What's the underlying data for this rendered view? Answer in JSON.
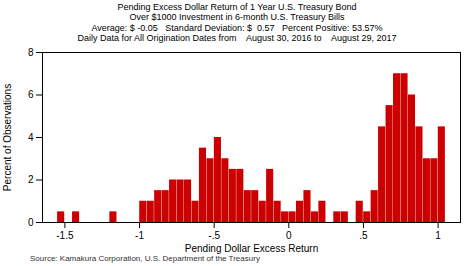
{
  "chart_data": {
    "type": "bar",
    "title": "Pending Excess Dollar Return of 1 Year U.S. Treasury Bond\nOver $1000 Investment in 6-month U.S. Treasury Bills\nAverage: $ -0.05   Standard Deviation: $  0.57   Percent Positive: 53.57%\nDaily Data for All Origination Dates from    August 30, 2016 to    August 29, 2017",
    "xlabel": "Pending Dollar Excess Return",
    "ylabel": "Percent of Observations",
    "caption": "Source: Kamakura Corporation, U.S. Department of the Treasury",
    "color": "#cc0000",
    "xlim": [
      -1.65,
      1.15
    ],
    "ylim": [
      0,
      8
    ],
    "xticks": [
      -1.5,
      -1,
      {
        "value": -0.5,
        "label": "-.5"
      },
      0,
      {
        "value": 0.5,
        "label": ".5"
      },
      1
    ],
    "yticks": [
      0,
      2,
      4,
      6,
      8
    ],
    "grid": false,
    "x": [
      -1.525,
      -1.475,
      -1.425,
      -1.375,
      -1.325,
      -1.275,
      -1.225,
      -1.175,
      -1.125,
      -1.075,
      -1.025,
      -0.975,
      -0.925,
      -0.875,
      -0.825,
      -0.775,
      -0.725,
      -0.675,
      -0.625,
      -0.575,
      -0.525,
      -0.475,
      -0.425,
      -0.375,
      -0.325,
      -0.275,
      -0.225,
      -0.175,
      -0.125,
      -0.075,
      -0.025,
      0.025,
      0.075,
      0.125,
      0.175,
      0.225,
      0.275,
      0.325,
      0.375,
      0.425,
      0.475,
      0.525,
      0.575,
      0.625,
      0.675,
      0.725,
      0.775,
      0.825,
      0.875,
      0.925,
      0.975,
      1.025
    ],
    "values": [
      0.5,
      0.0,
      0.5,
      0.0,
      0.0,
      0.0,
      0.0,
      0.5,
      0.0,
      0.0,
      0.0,
      1.0,
      1.0,
      1.5,
      1.5,
      2.0,
      2.0,
      2.0,
      1.0,
      3.5,
      3.0,
      4.0,
      3.0,
      2.5,
      2.5,
      1.5,
      1.5,
      1.0,
      2.5,
      1.0,
      0.5,
      0.5,
      1.0,
      1.5,
      0.5,
      1.0,
      0.0,
      0.5,
      0.5,
      0.0,
      1.0,
      0.5,
      1.5,
      4.5,
      5.5,
      7.0,
      7.0,
      6.0,
      4.5,
      3.0,
      3.0,
      4.5
    ]
  }
}
